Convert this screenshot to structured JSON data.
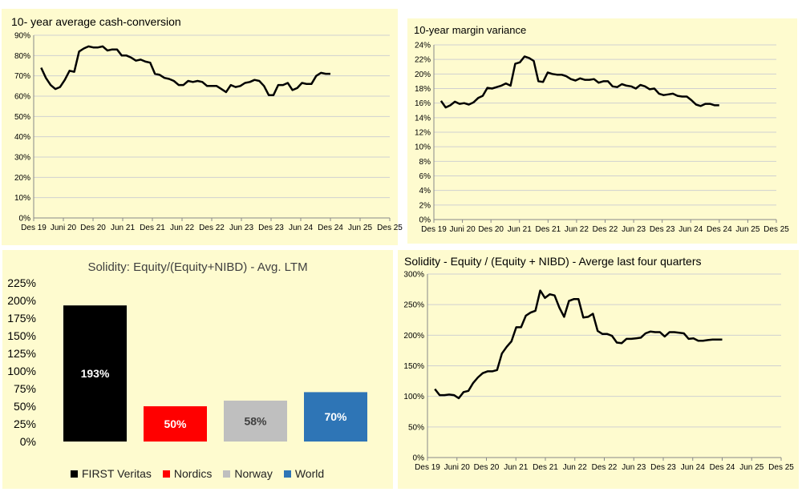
{
  "chart_data": [
    {
      "id": "cash",
      "type": "line",
      "title": "10- year average cash-conversion",
      "xlabel": "",
      "ylabel": "",
      "x_tick_labels": [
        "Des 19",
        "Juni 20",
        "Des 20",
        "Jun 21",
        "Des 21",
        "Jun 22",
        "Des 22",
        "Jun 23",
        "Des 23",
        "Jun 24",
        "Des 24",
        "Jun 25",
        "Des 25"
      ],
      "y_tick_labels": [
        "0%",
        "10%",
        "20%",
        "30%",
        "40%",
        "50%",
        "60%",
        "70%",
        "80%",
        "90%"
      ],
      "ylim": [
        0,
        90
      ],
      "grid": "horizontal",
      "series": [
        {
          "color": "#000000",
          "values": [
            74,
            69,
            65.5,
            63.5,
            64.5,
            68,
            72.5,
            72,
            82,
            83.5,
            84.5,
            84,
            84,
            84.5,
            82.5,
            83,
            83,
            80,
            80,
            79,
            77.5,
            78,
            77,
            76.5,
            71,
            70.5,
            69,
            68.5,
            67.5,
            65.5,
            65.5,
            67.5,
            67,
            67.5,
            67,
            65,
            65,
            65,
            63.5,
            62,
            65.5,
            64.5,
            65,
            66.5,
            67,
            68,
            67.5,
            65,
            60.5,
            60.5,
            65.5,
            65.5,
            66.5,
            63,
            64,
            66.5,
            66,
            66,
            70,
            71.5,
            71,
            71
          ]
        }
      ]
    },
    {
      "id": "margin",
      "type": "line",
      "title": "10-year margin variance",
      "xlabel": "",
      "ylabel": "",
      "x_tick_labels": [
        "Des 19",
        "Juni 20",
        "Des 20",
        "Jun 21",
        "Des 21",
        "Jun 22",
        "Des 22",
        "Jun 23",
        "Des 23",
        "Jun 24",
        "Des 24",
        "Jun 25",
        "Des 25"
      ],
      "y_tick_labels": [
        "0%",
        "2%",
        "4%",
        "6%",
        "8%",
        "10%",
        "12%",
        "14%",
        "16%",
        "18%",
        "20%",
        "22%",
        "24%"
      ],
      "ylim": [
        0,
        24
      ],
      "grid": "horizontal",
      "series": [
        {
          "color": "#000000",
          "values": [
            16.3,
            15.4,
            15.7,
            16.2,
            15.9,
            16,
            15.8,
            16.1,
            16.7,
            17,
            18.1,
            18,
            18.2,
            18.4,
            18.7,
            18.4,
            21.4,
            21.6,
            22.4,
            22.2,
            21.8,
            19,
            18.9,
            20.2,
            20,
            19.9,
            19.9,
            19.7,
            19.3,
            19.1,
            19.4,
            19.2,
            19.2,
            19.3,
            18.8,
            19,
            19,
            18.3,
            18.2,
            18.6,
            18.4,
            18.3,
            18,
            18.5,
            18.3,
            17.9,
            18,
            17.3,
            17.1,
            17.2,
            17.3,
            17,
            16.9,
            16.9,
            16.4,
            15.8,
            15.6,
            15.9,
            15.9,
            15.7,
            15.7
          ]
        }
      ]
    },
    {
      "id": "solidity_bar",
      "type": "bar",
      "title": "Solidity: Equity/(Equity+NIBD) - Avg. LTM",
      "xlabel": "",
      "ylabel": "",
      "categories": [
        "FIRST Veritas",
        "Nordics",
        "Norway",
        "World"
      ],
      "values": [
        193,
        50,
        58,
        70
      ],
      "data_labels": [
        "193%",
        "50%",
        "58%",
        "70%"
      ],
      "colors": [
        "#000000",
        "#ff0000",
        "#bfbfbf",
        "#2e75b6"
      ],
      "label_colors": [
        "#ffffff",
        "#ffffff",
        "#404040",
        "#ffffff"
      ],
      "y_tick_labels": [
        "0%",
        "25%",
        "50%",
        "75%",
        "100%",
        "125%",
        "150%",
        "175%",
        "200%",
        "225%"
      ],
      "ylim": [
        0,
        225
      ],
      "grid": "none",
      "legend": "bottom"
    },
    {
      "id": "solidity_line",
      "type": "line",
      "title": "Solidity - Equity / (Equity + NIBD) - Averge last four quarters",
      "xlabel": "",
      "ylabel": "",
      "x_tick_labels": [
        "Des 19",
        "Juni 20",
        "Des 20",
        "Jun 21",
        "Des 21",
        "Jun 22",
        "Des 22",
        "Jun 23",
        "Des 23",
        "Jun 24",
        "Des 24",
        "Jun 25",
        "Des 25"
      ],
      "y_tick_labels": [
        "0%",
        "50%",
        "100%",
        "150%",
        "200%",
        "250%",
        "300%"
      ],
      "ylim": [
        0,
        300
      ],
      "grid": "horizontal",
      "series": [
        {
          "color": "#000000",
          "values": [
            112,
            102,
            102,
            103,
            102,
            97,
            107,
            109,
            122,
            131,
            138,
            141,
            141,
            143,
            170,
            181,
            190,
            213,
            213,
            232,
            237,
            240,
            273,
            261,
            267,
            265,
            245,
            230,
            256,
            259,
            259,
            229,
            230,
            235,
            207,
            202,
            202,
            199,
            188,
            187,
            194,
            194,
            195,
            196,
            203,
            206,
            205,
            205,
            198,
            205,
            205,
            204,
            203,
            194,
            195,
            191,
            191,
            192,
            193,
            193,
            193
          ]
        }
      ]
    }
  ]
}
